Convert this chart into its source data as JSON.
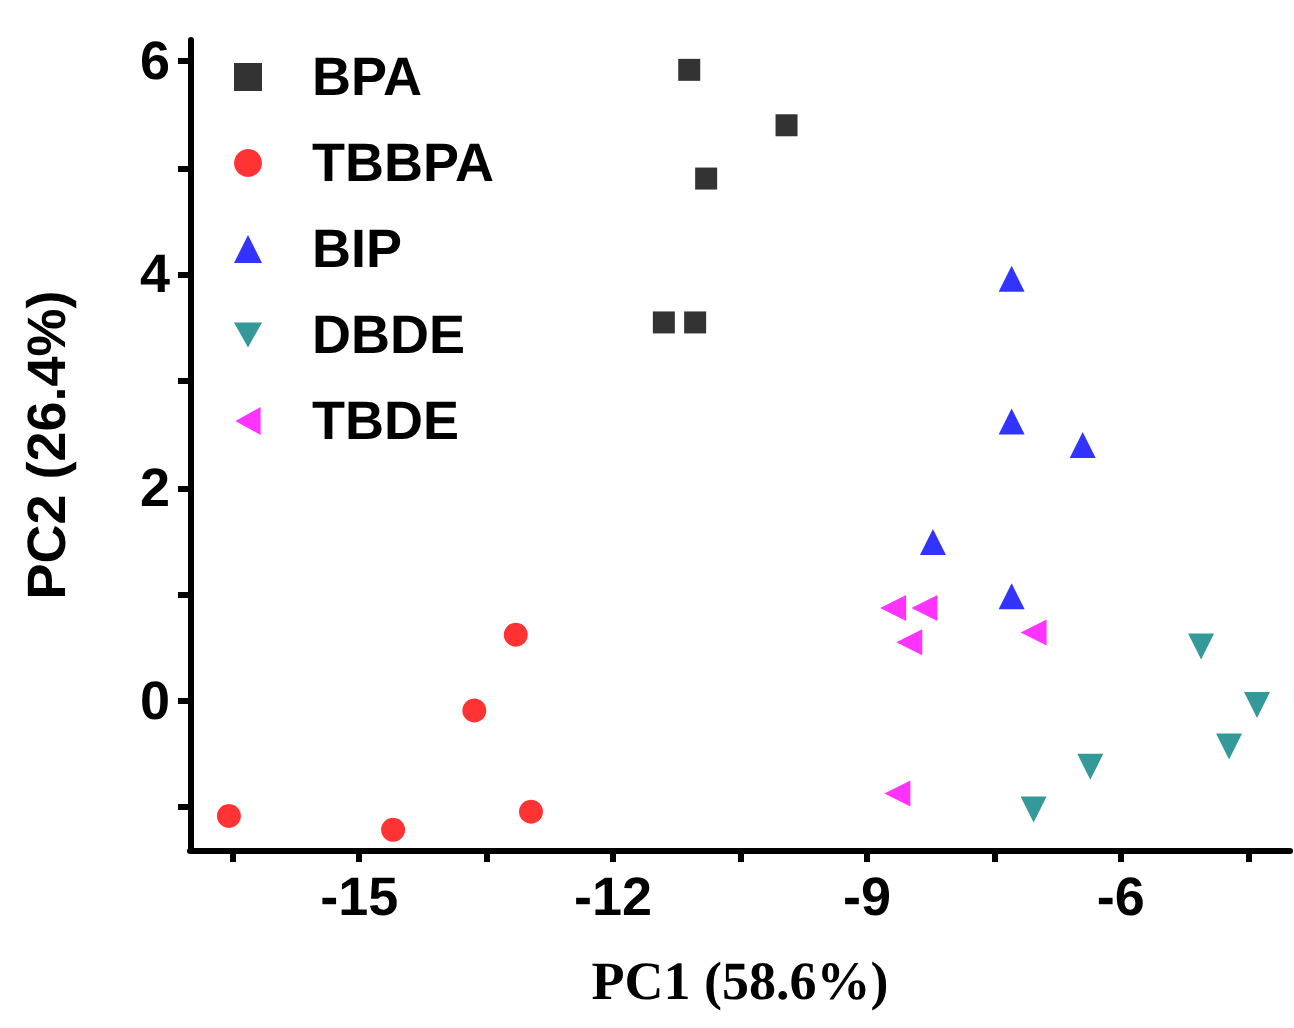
{
  "chart_data": {
    "type": "scatter",
    "xlabel": "PC1 (58.6%)",
    "ylabel": "PC2 (26.4%)",
    "xlim": [
      -17,
      -4
    ],
    "ylim": [
      -1.4,
      6.2
    ],
    "xticks": [
      {
        "value": -16.5,
        "label": null
      },
      -15,
      {
        "value": -13.5,
        "label": null
      },
      -12,
      {
        "value": -10.5,
        "label": null
      },
      -9,
      {
        "value": -7.5,
        "label": null
      },
      -6,
      {
        "value": -4.5,
        "label": null
      }
    ],
    "yticks": [
      {
        "value": -1,
        "label": null
      },
      0,
      {
        "value": 1,
        "label": null
      },
      2,
      {
        "value": 3,
        "label": null
      },
      4,
      {
        "value": 5,
        "label": null
      },
      6
    ],
    "grid": false,
    "legend": "top left",
    "series": [
      {
        "name": "BPA",
        "color": "#000000",
        "marker": "square",
        "x": [
          -11.1,
          -9.95,
          -10.9,
          -11.4,
          -11.03
        ],
        "values": [
          5.92,
          5.4,
          4.9,
          3.55,
          3.55
        ]
      },
      {
        "name": "TBBPA",
        "color": "#ff0000",
        "marker": "circle",
        "x": [
          -13.15,
          -13.64,
          -16.54,
          -14.6,
          -12.97
        ],
        "values": [
          0.62,
          -0.09,
          -1.08,
          -1.21,
          -1.04
        ]
      },
      {
        "name": "BIP",
        "color": "#0000ff",
        "marker": "triangle",
        "x": [
          -7.29,
          -7.29,
          -6.45,
          -8.22,
          -7.29
        ],
        "values": [
          3.96,
          2.62,
          2.4,
          1.49,
          0.98
        ]
      },
      {
        "name": "DBDE",
        "color": "#008080",
        "marker": "triangle-down",
        "x": [
          -5.05,
          -4.39,
          -4.72,
          -6.36,
          -7.03
        ],
        "values": [
          0.51,
          -0.04,
          -0.43,
          -0.62,
          -1.02
        ]
      },
      {
        "name": "TBDE",
        "color": "#ff00ff",
        "marker": "triangle-left",
        "x": [
          -8.69,
          -8.32,
          -8.5,
          -7.03,
          -8.64
        ],
        "values": [
          0.87,
          0.87,
          0.55,
          0.64,
          -0.87
        ]
      }
    ]
  }
}
